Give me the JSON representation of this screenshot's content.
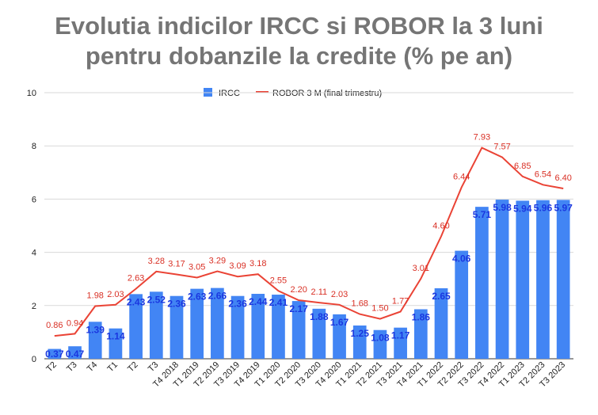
{
  "title_line1": "Evolutia indicilor IRCC si ROBOR la 3 luni",
  "title_line2": "pentru dobanzile la credite (% pe an)",
  "colors": {
    "bars": "#4285f4",
    "line": "#ea4335",
    "bar_label": "#1a37e0",
    "line_label": "#d93025"
  },
  "chart_data": {
    "type": "bar",
    "title": "Evolutia indicilor IRCC si ROBOR la 3 luni pentru dobanzile la credite (% pe an)",
    "categories": [
      "T2",
      "T3",
      "T4",
      "T1",
      "T2",
      "T3",
      "T4 2018",
      "T1 2019",
      "T2 2019",
      "T3 2019",
      "T4 2019",
      "T1 2020",
      "T2 2020",
      "T3 2020",
      "T4 2020",
      "T1 2021",
      "T2 2021",
      "T3 2021",
      "T4 2021",
      "T1 2022",
      "T2 2022",
      "T3 2022",
      "T4 2022",
      "T1 2023",
      "T2 2023",
      "T3 2023"
    ],
    "series": [
      {
        "name": "IRCC",
        "kind": "bar",
        "values": [
          0.37,
          0.47,
          1.39,
          1.14,
          2.43,
          2.52,
          2.36,
          2.63,
          2.66,
          2.36,
          2.44,
          2.41,
          2.17,
          1.88,
          1.67,
          1.25,
          1.08,
          1.17,
          1.86,
          2.65,
          4.06,
          5.71,
          5.98,
          5.94,
          5.96,
          5.97
        ]
      },
      {
        "name": "ROBOR 3 M (final trimestru)",
        "kind": "line",
        "values": [
          0.86,
          0.94,
          1.98,
          2.03,
          2.63,
          3.28,
          3.17,
          3.05,
          3.29,
          3.09,
          3.18,
          2.55,
          2.2,
          2.11,
          2.03,
          1.68,
          1.5,
          1.77,
          3.01,
          4.6,
          6.44,
          7.93,
          7.57,
          6.85,
          6.54,
          6.4
        ]
      }
    ],
    "ylim": [
      0,
      10
    ],
    "yticks": [
      0,
      2,
      4,
      6,
      8,
      10
    ],
    "grid": true,
    "legend": "top-center"
  }
}
